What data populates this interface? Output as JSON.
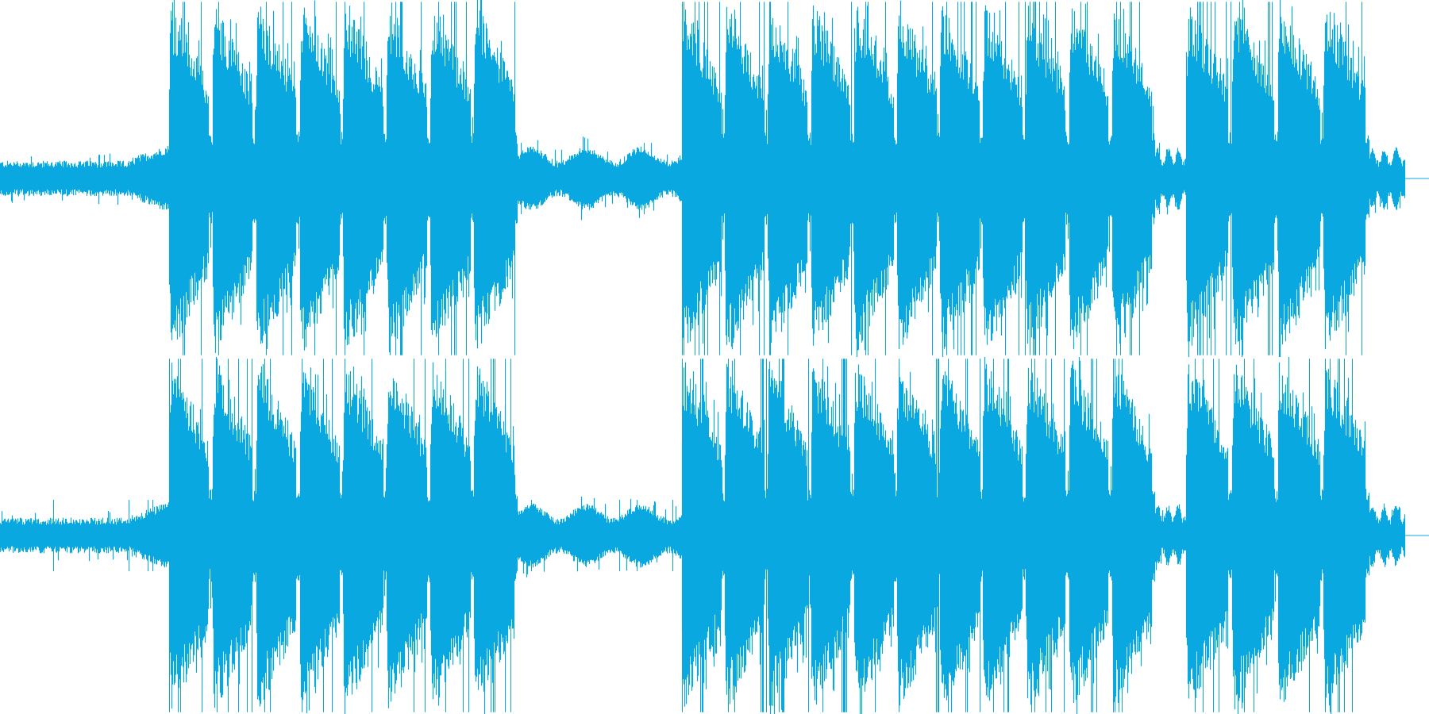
{
  "waveform": {
    "color": "#0aa8e0",
    "background": "#ffffff",
    "channels": 2,
    "duration_fraction_of_view": 0.983,
    "segments": [
      {
        "from": 0.0,
        "to": 0.092,
        "level": "quiet"
      },
      {
        "from": 0.092,
        "to": 0.118,
        "level": "rising"
      },
      {
        "from": 0.118,
        "to": 0.362,
        "level": "beats",
        "beat_count": 8
      },
      {
        "from": 0.362,
        "to": 0.477,
        "level": "medium"
      },
      {
        "from": 0.477,
        "to": 0.808,
        "level": "beats",
        "beat_count": 11
      },
      {
        "from": 0.808,
        "to": 0.83,
        "level": "medium"
      },
      {
        "from": 0.83,
        "to": 0.958,
        "level": "beats",
        "beat_count": 4
      },
      {
        "from": 0.958,
        "to": 0.983,
        "level": "medium"
      }
    ]
  }
}
